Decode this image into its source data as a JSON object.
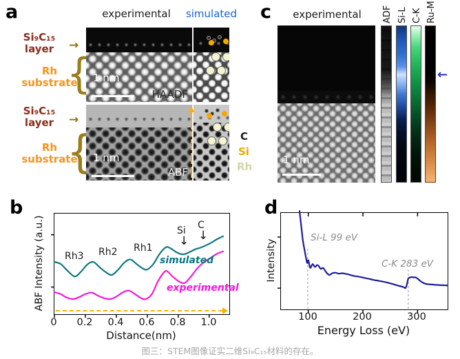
{
  "panel_a": {
    "label": "a",
    "header_experimental": "experimental",
    "header_simulated": "simulated",
    "layer_label_line1": "Si₉C₁₅",
    "layer_label_line2": "layer",
    "substrate_label_line1": "Rh",
    "substrate_label_line2": "substrate",
    "haadf": {
      "scale_bar": "1 nm",
      "mode": "HAADF"
    },
    "abf": {
      "scale_bar": "1 nm",
      "mode": "ABF"
    },
    "legend": [
      {
        "label": "C",
        "color": "#1a1a1a"
      },
      {
        "label": "Si",
        "color": "#f0a500"
      },
      {
        "label": "Rh",
        "color": "#d4d6a8"
      }
    ]
  },
  "panel_b": {
    "label": "b"
  },
  "panel_c": {
    "label": "c",
    "header": "experimental",
    "scale_bar": "1 nm",
    "maps": [
      {
        "label": "ADF"
      },
      {
        "label": "Si-L"
      },
      {
        "label": "C-K"
      },
      {
        "label": "Ru-M"
      }
    ],
    "accent_colors": {
      "si_l": "#2e6fd2",
      "c_k": "#22b85c",
      "ru_m": "#cc7d38",
      "arrow": "#3535bb"
    }
  },
  "panel_d": {
    "label": "d"
  },
  "caption": "图三：STEM图像证实二维Si₉C₁₅材料的存在。",
  "chart_data": [
    {
      "type": "line",
      "title": "",
      "xlabel": "Distance(nm)",
      "ylabel": "ABF Intensity (a.u.)",
      "xlim": [
        0,
        1.13
      ],
      "ylim": [
        0,
        1
      ],
      "grid": false,
      "legend_position": "inline",
      "xticks": [
        "0",
        "0.2",
        "0.4",
        "0.6",
        "0.8",
        "1.0"
      ],
      "xtick_values": [
        0,
        0.2,
        0.4,
        0.6,
        0.8,
        1.0
      ],
      "ytick_values": [
        0.27,
        0.79
      ],
      "series": [
        {
          "name": "simulated",
          "color": "#0d7680",
          "points": [
            [
              0,
              0.52
            ],
            [
              0.04,
              0.5
            ],
            [
              0.08,
              0.44
            ],
            [
              0.13,
              0.375
            ],
            [
              0.17,
              0.42
            ],
            [
              0.21,
              0.49
            ],
            [
              0.25,
              0.52
            ],
            [
              0.29,
              0.47
            ],
            [
              0.33,
              0.42
            ],
            [
              0.37,
              0.39
            ],
            [
              0.41,
              0.44
            ],
            [
              0.45,
              0.51
            ],
            [
              0.49,
              0.545
            ],
            [
              0.53,
              0.5
            ],
            [
              0.57,
              0.455
            ],
            [
              0.6,
              0.445
            ],
            [
              0.64,
              0.5
            ],
            [
              0.68,
              0.6
            ],
            [
              0.72,
              0.665
            ],
            [
              0.75,
              0.655
            ],
            [
              0.79,
              0.615
            ],
            [
              0.83,
              0.595
            ],
            [
              0.87,
              0.615
            ],
            [
              0.91,
              0.645
            ],
            [
              0.95,
              0.665
            ],
            [
              1.0,
              0.7
            ],
            [
              1.05,
              0.745
            ],
            [
              1.09,
              0.775
            ]
          ]
        },
        {
          "name": "experimental",
          "color": "#f318d8",
          "points": [
            [
              0,
              0.22
            ],
            [
              0.04,
              0.2
            ],
            [
              0.08,
              0.165
            ],
            [
              0.12,
              0.15
            ],
            [
              0.16,
              0.17
            ],
            [
              0.2,
              0.2
            ],
            [
              0.24,
              0.215
            ],
            [
              0.28,
              0.185
            ],
            [
              0.32,
              0.16
            ],
            [
              0.36,
              0.15
            ],
            [
              0.4,
              0.175
            ],
            [
              0.44,
              0.215
            ],
            [
              0.48,
              0.235
            ],
            [
              0.52,
              0.2
            ],
            [
              0.56,
              0.16
            ],
            [
              0.59,
              0.15
            ],
            [
              0.63,
              0.2
            ],
            [
              0.67,
              0.33
            ],
            [
              0.71,
              0.42
            ],
            [
              0.73,
              0.425
            ],
            [
              0.76,
              0.38
            ],
            [
              0.8,
              0.33
            ],
            [
              0.84,
              0.31
            ],
            [
              0.88,
              0.37
            ],
            [
              0.92,
              0.45
            ],
            [
              0.96,
              0.51
            ],
            [
              1.0,
              0.55
            ],
            [
              1.05,
              0.6
            ],
            [
              1.09,
              0.625
            ]
          ]
        }
      ],
      "annotations": {
        "rh3": "Rh3",
        "rh2": "Rh2",
        "rh1": "Rh1",
        "si": "Si",
        "c": "C",
        "sim": "simulated",
        "exp": "experimental"
      }
    },
    {
      "type": "line",
      "title": "",
      "xlabel": "Energy Loss (eV)",
      "ylabel": "Intensity",
      "xlim": [
        50,
        355
      ],
      "ylim": [
        0,
        1
      ],
      "grid": false,
      "top_ticks": true,
      "xticks": [
        "100",
        "200",
        "300"
      ],
      "xtick_values": [
        100,
        200,
        300
      ],
      "ytick_values": [
        0.22,
        0.75
      ],
      "series": [
        {
          "name": "EELS spectrum",
          "color": "#1c1c96",
          "points": [
            [
              84,
              1.02
            ],
            [
              86,
              0.92
            ],
            [
              88,
              0.82
            ],
            [
              90,
              0.72
            ],
            [
              93,
              0.62
            ],
            [
              96,
              0.53
            ],
            [
              98,
              0.48
            ],
            [
              100,
              0.51
            ],
            [
              102,
              0.46
            ],
            [
              104,
              0.43
            ],
            [
              108,
              0.47
            ],
            [
              112,
              0.44
            ],
            [
              116,
              0.46
            ],
            [
              119,
              0.45
            ],
            [
              123,
              0.42
            ],
            [
              127,
              0.43
            ],
            [
              131,
              0.4
            ],
            [
              135,
              0.37
            ],
            [
              139,
              0.357
            ],
            [
              144,
              0.375
            ],
            [
              150,
              0.38
            ],
            [
              156,
              0.37
            ],
            [
              162,
              0.375
            ],
            [
              167,
              0.37
            ],
            [
              172,
              0.365
            ],
            [
              178,
              0.355
            ],
            [
              185,
              0.345
            ],
            [
              192,
              0.34
            ],
            [
              200,
              0.33
            ],
            [
              210,
              0.318
            ],
            [
              220,
              0.305
            ],
            [
              230,
              0.295
            ],
            [
              243,
              0.28
            ],
            [
              255,
              0.262
            ],
            [
              265,
              0.245
            ],
            [
              274,
              0.232
            ],
            [
              278,
              0.222
            ],
            [
              281,
              0.27
            ],
            [
              283,
              0.32
            ],
            [
              286,
              0.33
            ],
            [
              289,
              0.335
            ],
            [
              293,
              0.332
            ],
            [
              297,
              0.33
            ],
            [
              302,
              0.31
            ],
            [
              306,
              0.29
            ],
            [
              312,
              0.27
            ],
            [
              318,
              0.262
            ],
            [
              325,
              0.258
            ],
            [
              332,
              0.255
            ],
            [
              340,
              0.252
            ],
            [
              348,
              0.25
            ],
            [
              355,
              0.248
            ]
          ]
        }
      ],
      "edge_markers": [
        {
          "label": "Si-L 99 eV",
          "x": 99,
          "line_top": 0.64
        },
        {
          "label": "C-K 283 eV",
          "x": 283,
          "line_top": 0.41
        }
      ]
    }
  ]
}
